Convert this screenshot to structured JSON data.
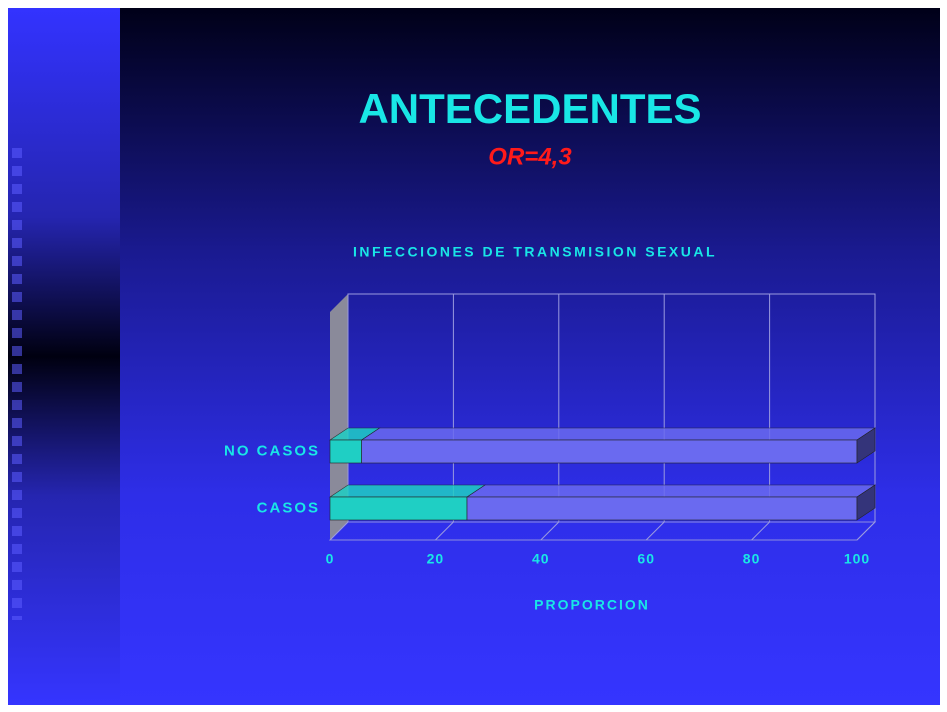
{
  "chart_data": {
    "type": "bar3d_stacked_horizontal",
    "title": "ANTECEDENTES",
    "subtitle": "OR=4,3",
    "chart_title": "INFECCIONES DE TRANSMISION SEXUAL",
    "x_label": "PROPORCION",
    "categories": [
      "CASOS",
      "NO CASOS"
    ],
    "series": [
      {
        "color": "#1fcfc4",
        "values": [
          26,
          6
        ]
      },
      {
        "color": "#6a6af0",
        "values": [
          74,
          94
        ]
      }
    ],
    "xlim": [
      0,
      100
    ],
    "xticks": [
      0,
      20,
      40,
      60,
      80,
      100
    ],
    "grid": true
  }
}
